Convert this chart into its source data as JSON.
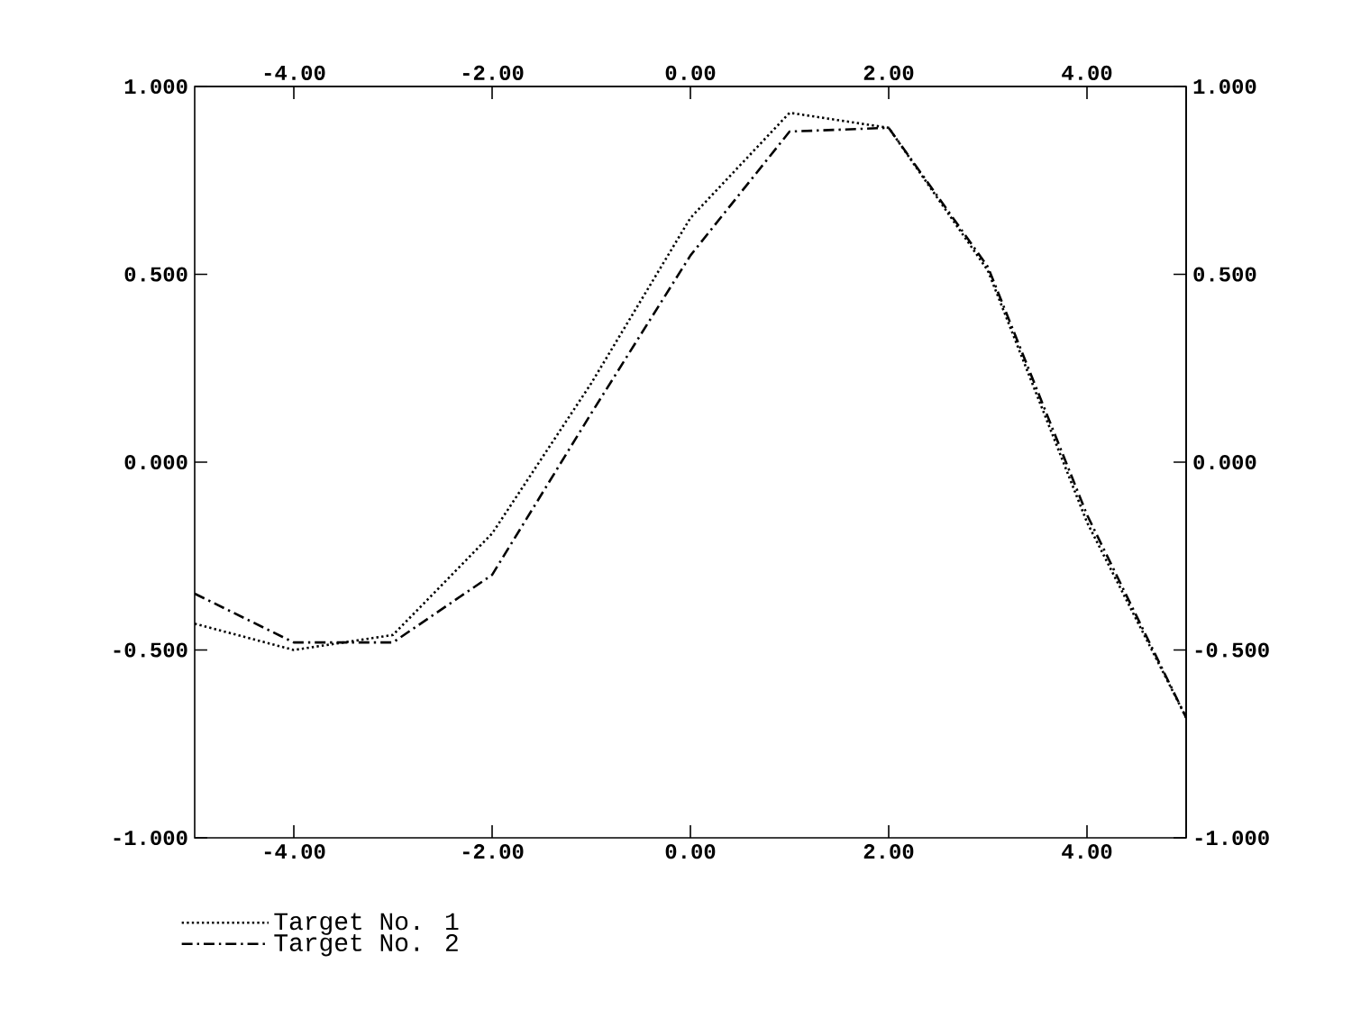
{
  "chart_data": {
    "type": "line",
    "x": [
      -5,
      -4,
      -3,
      -2,
      -1,
      0,
      1,
      2,
      3,
      4,
      5
    ],
    "series": [
      {
        "name": "Target No. 1",
        "color": "#000000",
        "line_style": "dotted",
        "values": [
          -0.43,
          -0.5,
          -0.46,
          -0.19,
          0.21,
          0.65,
          0.93,
          0.89,
          0.51,
          -0.16,
          -0.68
        ]
      },
      {
        "name": "Target No. 2",
        "color": "#000000",
        "line_style": "dashed",
        "values": [
          -0.35,
          -0.48,
          -0.48,
          -0.3,
          0.13,
          0.55,
          0.88,
          0.89,
          0.52,
          -0.14,
          -0.68
        ]
      }
    ],
    "xlim": [
      -5,
      5
    ],
    "xticks": [
      {
        "value": -4,
        "label": "-4.00"
      },
      {
        "value": -2,
        "label": "-2.00"
      },
      {
        "value": 0,
        "label": "0.00"
      },
      {
        "value": 2,
        "label": "2.00"
      },
      {
        "value": 4,
        "label": "4.00"
      }
    ],
    "x2lim": [
      -5,
      5
    ],
    "x2ticks": [
      {
        "value": -4,
        "label": "-4.00"
      },
      {
        "value": -2,
        "label": "-2.00"
      },
      {
        "value": 0,
        "label": "0.00"
      },
      {
        "value": 2,
        "label": "2.00"
      },
      {
        "value": 4,
        "label": "4.00"
      }
    ],
    "ylim": [
      -1,
      1
    ],
    "yticks": [
      {
        "value": -1,
        "label": "-1.000"
      },
      {
        "value": -0.5,
        "label": "-0.500"
      },
      {
        "value": 0,
        "label": "0.000"
      },
      {
        "value": 0.5,
        "label": "0.500"
      },
      {
        "value": 1,
        "label": "1.000"
      }
    ],
    "y2lim": [
      -1,
      1
    ],
    "y2ticks": [
      {
        "value": -1,
        "label": "-1.000"
      },
      {
        "value": -0.5,
        "label": "-0.500"
      },
      {
        "value": 0,
        "label": "0.000"
      },
      {
        "value": 0.5,
        "label": "0.500"
      },
      {
        "value": 1,
        "label": "1.000"
      }
    ],
    "grid": false,
    "marker": "none",
    "legend": "bottom left"
  }
}
